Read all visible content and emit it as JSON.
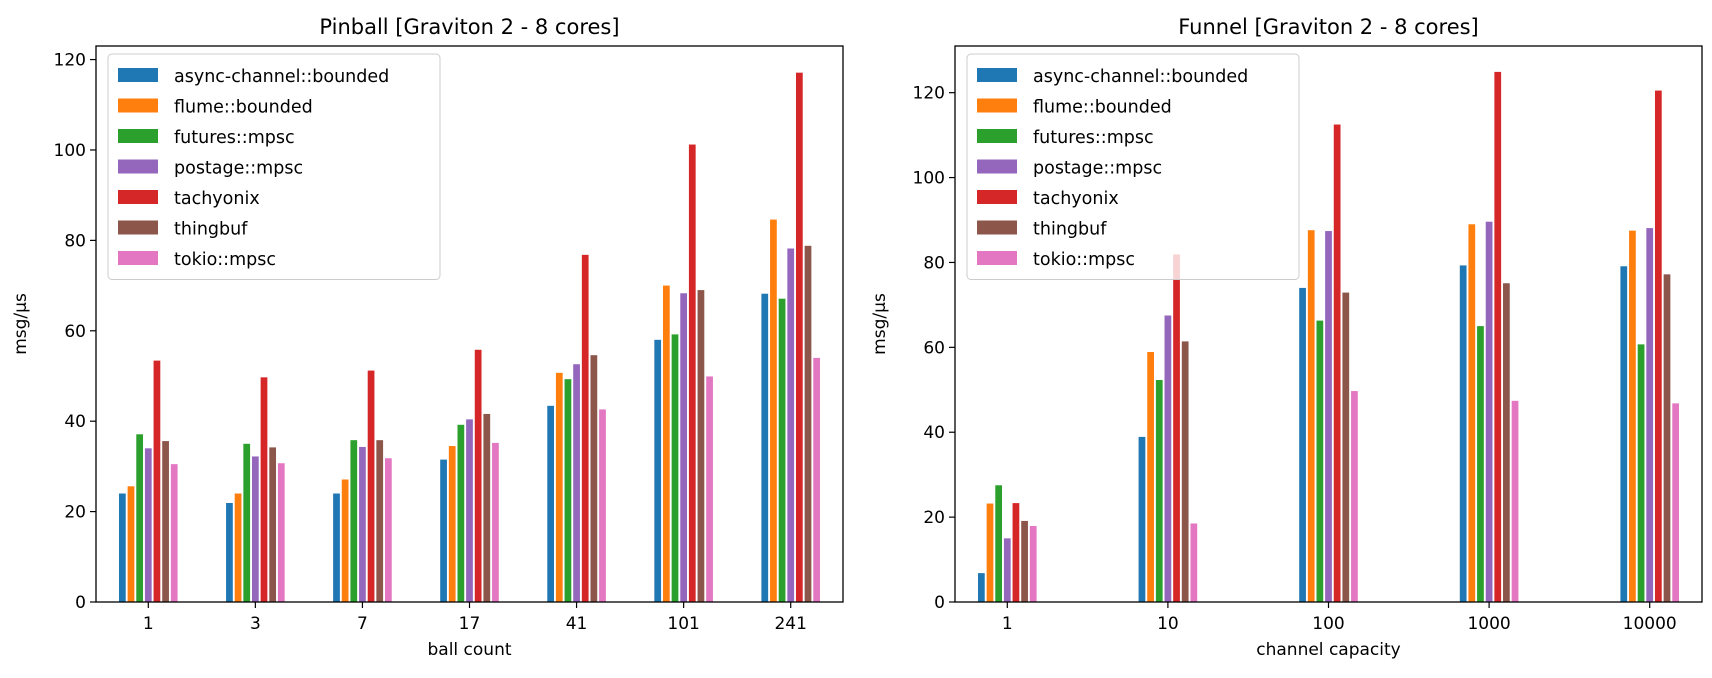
{
  "chart_data": [
    {
      "type": "bar",
      "title": "Pinball [Graviton 2 - 8 cores]",
      "xlabel": "ball count",
      "ylabel": "msg/µs",
      "ylim": [
        0,
        123
      ],
      "yticks": [
        0,
        20,
        40,
        60,
        80,
        100,
        120
      ],
      "grid": false,
      "legend_position": "top-left",
      "categories": [
        "1",
        "3",
        "7",
        "17",
        "41",
        "101",
        "241"
      ],
      "series": [
        {
          "name": "async-channel::bounded",
          "color": "#1f77b4",
          "values": [
            24.0,
            21.9,
            24.0,
            31.5,
            43.4,
            58.0,
            68.2
          ]
        },
        {
          "name": "flume::bounded",
          "color": "#ff7f0e",
          "values": [
            25.6,
            24.0,
            27.1,
            34.5,
            50.7,
            70.0,
            84.6
          ]
        },
        {
          "name": "futures::mpsc",
          "color": "#2ca02c",
          "values": [
            37.1,
            35.0,
            35.8,
            39.2,
            49.3,
            59.2,
            67.1
          ]
        },
        {
          "name": "postage::mpsc",
          "color": "#9467bd",
          "values": [
            34.0,
            32.2,
            34.3,
            40.4,
            52.6,
            68.3,
            78.2
          ]
        },
        {
          "name": "tachyonix",
          "color": "#d62728",
          "values": [
            53.4,
            49.7,
            51.2,
            55.8,
            76.8,
            101.2,
            117.1
          ]
        },
        {
          "name": "thingbuf",
          "color": "#8c564b",
          "values": [
            35.6,
            34.2,
            35.8,
            41.6,
            54.6,
            69.0,
            78.8
          ]
        },
        {
          "name": "tokio::mpsc",
          "color": "#e377c2",
          "values": [
            30.5,
            30.7,
            31.8,
            35.2,
            42.6,
            49.9,
            54.0
          ]
        }
      ]
    },
    {
      "type": "bar",
      "title": "Funnel [Graviton 2 - 8 cores]",
      "xlabel": "channel capacity",
      "ylabel": "msg/µs",
      "ylim": [
        0,
        131
      ],
      "yticks": [
        0,
        20,
        40,
        60,
        80,
        100,
        120
      ],
      "grid": false,
      "legend_position": "top-left",
      "categories": [
        "1",
        "10",
        "100",
        "1000",
        "10000"
      ],
      "series": [
        {
          "name": "async-channel::bounded",
          "color": "#1f77b4",
          "values": [
            6.8,
            38.9,
            74.0,
            79.3,
            79.1
          ]
        },
        {
          "name": "flume::bounded",
          "color": "#ff7f0e",
          "values": [
            23.2,
            58.9,
            87.6,
            89.0,
            87.5
          ]
        },
        {
          "name": "futures::mpsc",
          "color": "#2ca02c",
          "values": [
            27.5,
            52.3,
            66.3,
            65.0,
            60.7
          ]
        },
        {
          "name": "postage::mpsc",
          "color": "#9467bd",
          "values": [
            15.0,
            67.5,
            87.4,
            89.6,
            88.1
          ]
        },
        {
          "name": "tachyonix",
          "color": "#d62728",
          "values": [
            23.3,
            81.9,
            112.5,
            124.9,
            120.5
          ]
        },
        {
          "name": "thingbuf",
          "color": "#8c564b",
          "values": [
            19.1,
            61.4,
            72.9,
            75.1,
            77.2
          ]
        },
        {
          "name": "tokio::mpsc",
          "color": "#e377c2",
          "values": [
            17.9,
            18.5,
            49.7,
            47.4,
            46.8
          ]
        }
      ]
    }
  ]
}
